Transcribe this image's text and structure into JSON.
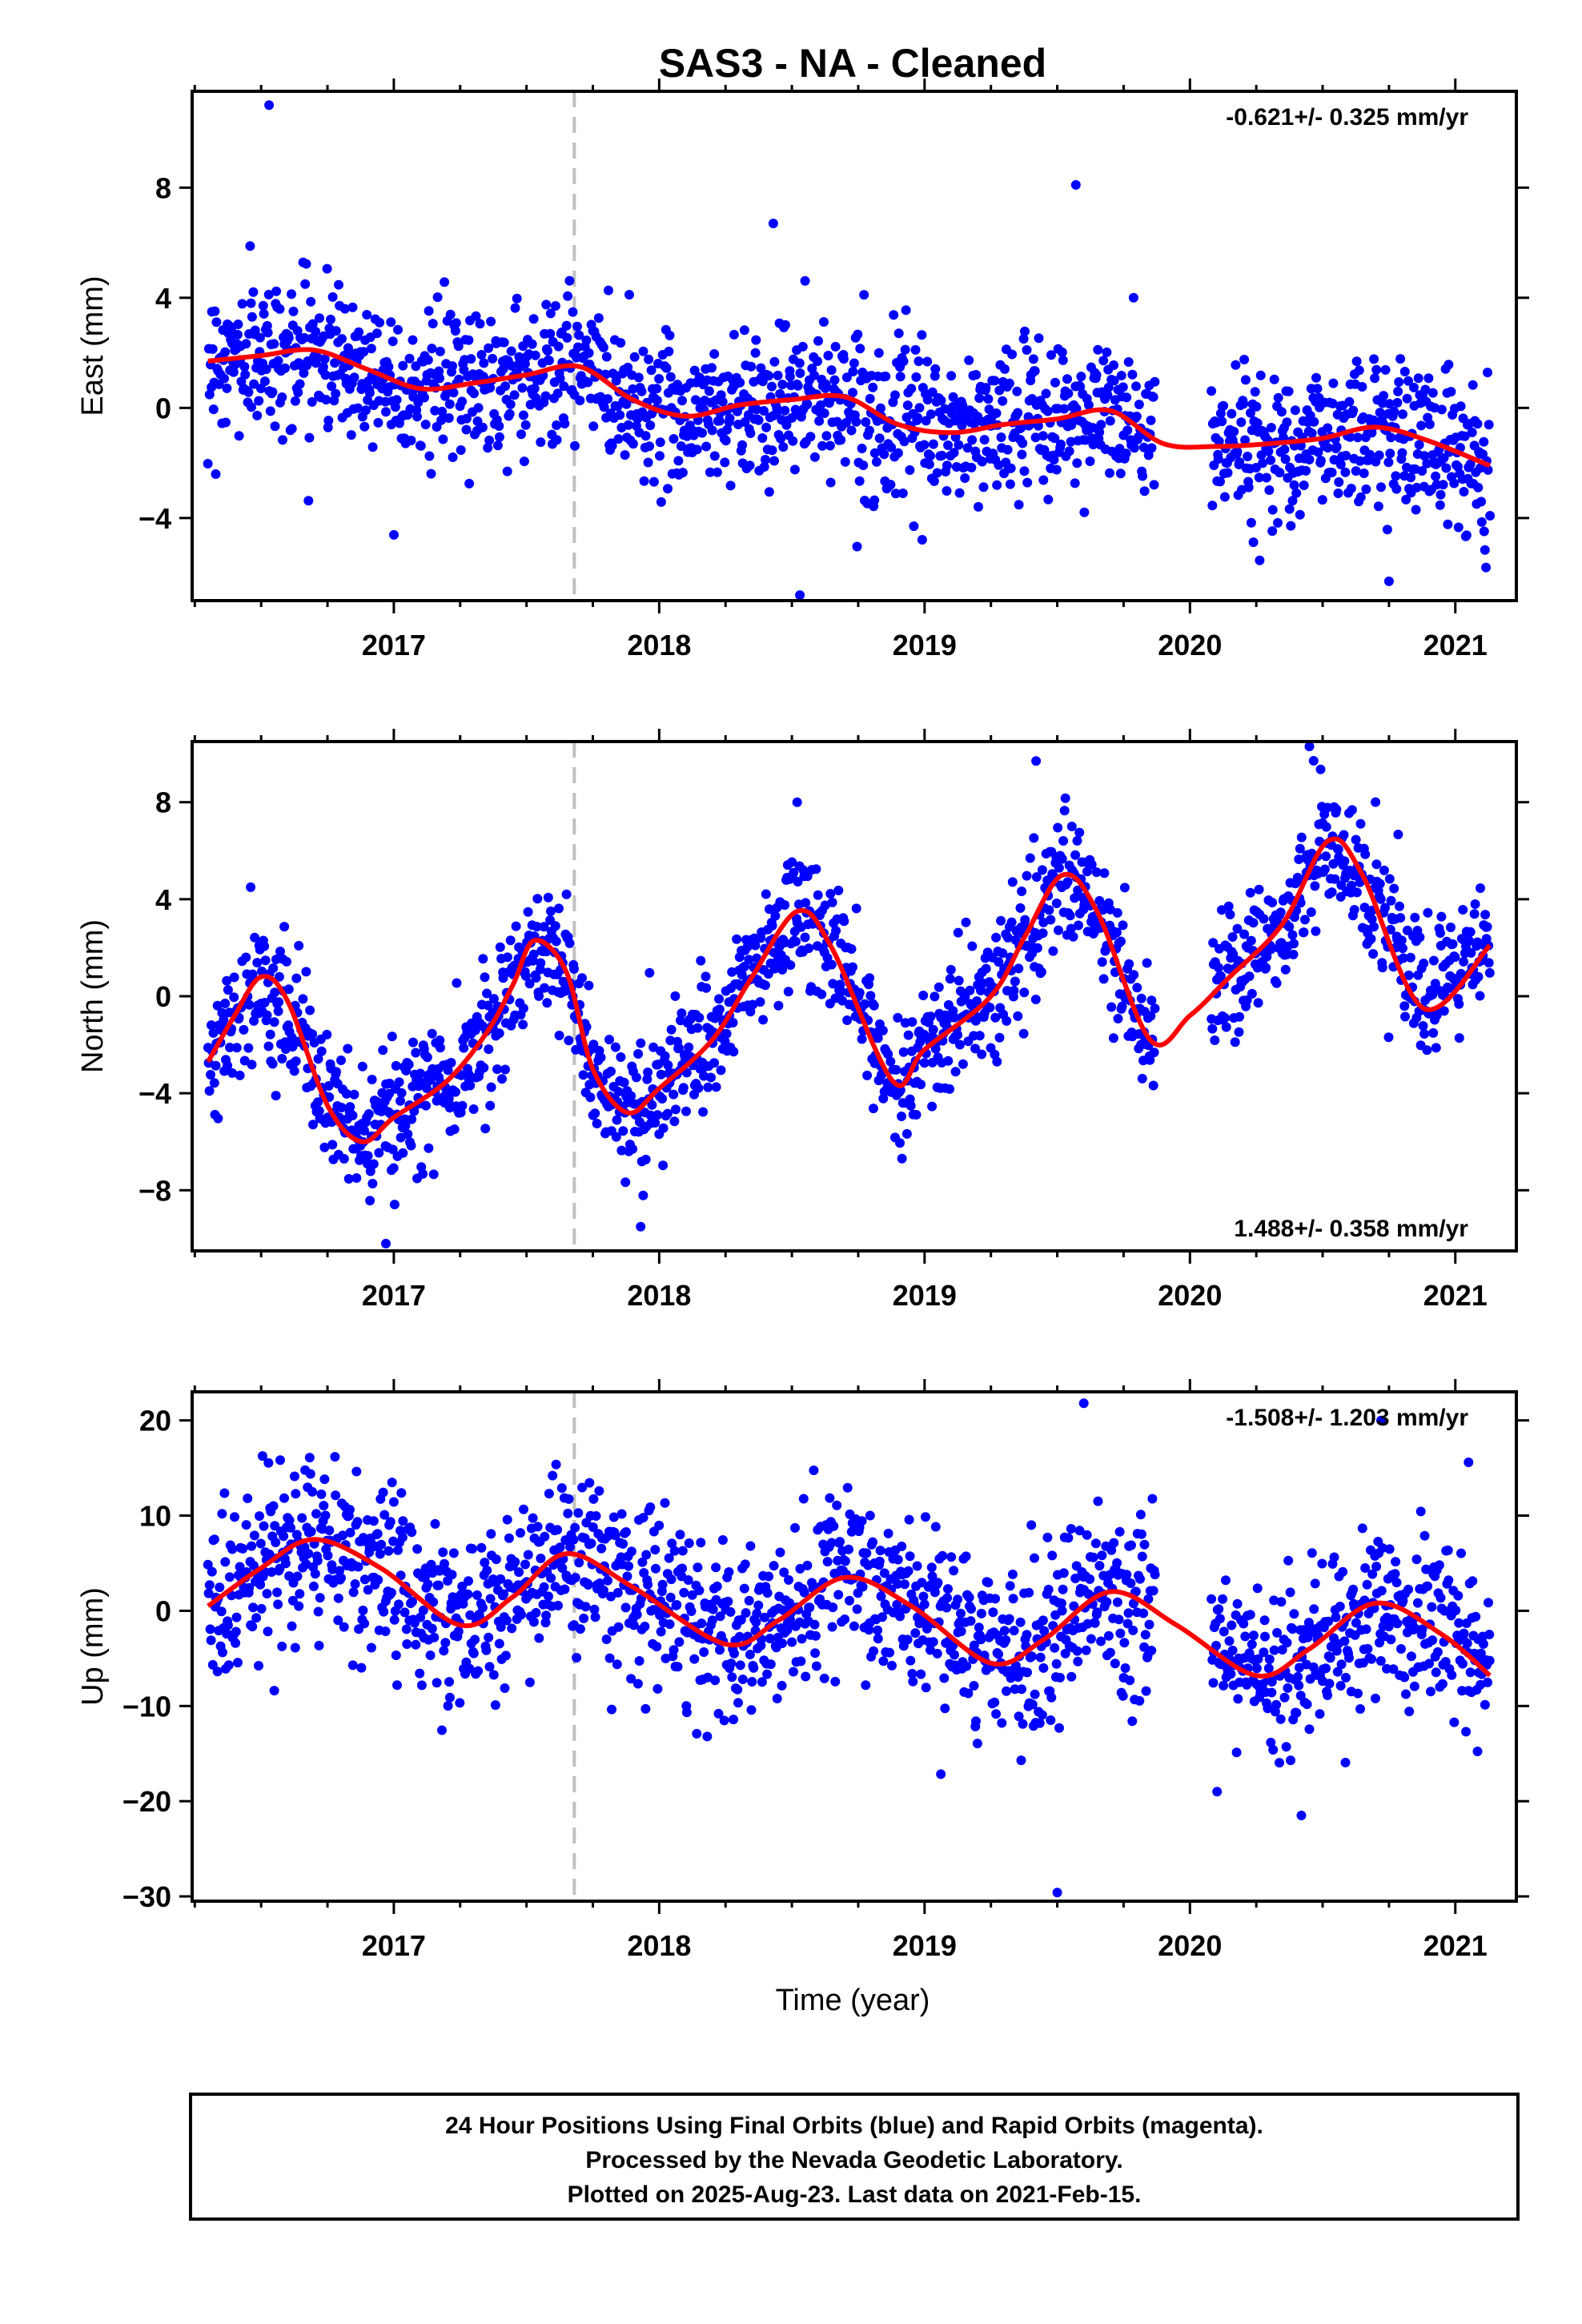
{
  "title": "SAS3  - NA - Cleaned",
  "xlabel": "Time (year)",
  "footer": {
    "line1": "24 Hour Positions Using Final Orbits (blue) and Rapid Orbits (magenta).",
    "line2": "Processed by the Nevada Geodetic Laboratory.",
    "line3": "Plotted on 2025-Aug-23. Last data on 2021-Feb-15."
  },
  "colors": {
    "points": "#0000ff",
    "fit": "#ff0000",
    "event_line": "#c0c0c0",
    "frame": "#000000"
  },
  "chart_data": [
    {
      "type": "scatter",
      "ylabel": "East (mm)",
      "rate": "-0.621+/- 0.325 mm/yr",
      "rate_position": "top-right",
      "xlim": [
        2016.24,
        2021.23
      ],
      "ylim": [
        -7.0,
        11.5
      ],
      "x_ticks": [
        2017,
        2018,
        2019,
        2020,
        2021
      ],
      "x_tick_labels": [
        "2017",
        "2018",
        "2019",
        "2020",
        "2021"
      ],
      "y_ticks": [
        -4,
        0,
        4,
        8
      ],
      "y_tick_labels": [
        "−4",
        "0",
        "4",
        "8"
      ],
      "event_line_x": 2017.68,
      "data_gap": [
        2019.87,
        2020.08
      ],
      "fit_curve": {
        "x": [
          2016.3,
          2016.5,
          2016.7,
          2016.9,
          2017.1,
          2017.3,
          2017.5,
          2017.7,
          2017.9,
          2018.1,
          2018.3,
          2018.5,
          2018.7,
          2018.9,
          2019.1,
          2019.3,
          2019.5,
          2019.7,
          2019.9,
          2020.1,
          2020.3,
          2020.5,
          2020.7,
          2020.9,
          2021.13
        ],
        "y": [
          1.7,
          1.9,
          2.1,
          1.4,
          0.7,
          0.9,
          1.2,
          1.5,
          0.3,
          -0.3,
          0.1,
          0.3,
          0.4,
          -0.6,
          -0.9,
          -0.6,
          -0.4,
          -0.1,
          -1.3,
          -1.4,
          -1.3,
          -1.1,
          -0.7,
          -1.2,
          -2.1
        ]
      },
      "points": {
        "count": 1650,
        "note": "daily positions",
        "outliers": [
          [
            2016.53,
            11.0
          ],
          [
            2018.43,
            6.7
          ],
          [
            2019.57,
            8.1
          ],
          [
            2018.53,
            -6.8
          ],
          [
            2020.75,
            -6.3
          ]
        ]
      }
    },
    {
      "type": "scatter",
      "ylabel": "North (mm)",
      "rate": "1.488+/- 0.358 mm/yr",
      "rate_position": "bottom-right",
      "xlim": [
        2016.24,
        2021.23
      ],
      "ylim": [
        -10.5,
        10.5
      ],
      "x_ticks": [
        2017,
        2018,
        2019,
        2020,
        2021
      ],
      "x_tick_labels": [
        "2017",
        "2018",
        "2019",
        "2020",
        "2021"
      ],
      "y_ticks": [
        -8,
        -4,
        0,
        4,
        8
      ],
      "y_tick_labels": [
        "−8",
        "−4",
        "0",
        "4",
        "8"
      ],
      "event_line_x": 2017.68,
      "data_gap": [
        2019.87,
        2020.08
      ],
      "fit_curve": {
        "x": [
          2016.3,
          2016.4,
          2016.5,
          2016.6,
          2016.75,
          2016.88,
          2017.0,
          2017.2,
          2017.35,
          2017.45,
          2017.53,
          2017.65,
          2017.75,
          2017.88,
          2018.0,
          2018.2,
          2018.35,
          2018.52,
          2018.65,
          2018.88,
          2019.0,
          2019.25,
          2019.38,
          2019.52,
          2019.65,
          2019.85,
          2020.0,
          2020.15,
          2020.35,
          2020.52,
          2020.65,
          2020.88,
          2021.13
        ],
        "y": [
          -2.7,
          -0.8,
          0.8,
          -0.2,
          -4.5,
          -6.0,
          -5.0,
          -3.5,
          -1.5,
          0.5,
          2.3,
          1.0,
          -3.0,
          -4.8,
          -3.8,
          -1.8,
          0.8,
          3.5,
          2.0,
          -3.5,
          -2.2,
          0.0,
          2.5,
          5.0,
          3.5,
          -1.8,
          -0.8,
          0.8,
          3.0,
          6.4,
          5.0,
          -0.5,
          2.1
        ]
      },
      "points": {
        "count": 1650,
        "note": "daily positions",
        "outliers": [
          [
            2019.42,
            9.7
          ],
          [
            2020.45,
            10.3
          ],
          [
            2018.52,
            8.0
          ],
          [
            2016.97,
            -10.2
          ],
          [
            2017.93,
            -9.5
          ]
        ]
      }
    },
    {
      "type": "scatter",
      "ylabel": "Up (mm)",
      "rate": "-1.508+/- 1.203 mm/yr",
      "rate_position": "top-right",
      "xlim": [
        2016.24,
        2021.23
      ],
      "ylim": [
        -30.5,
        23.0
      ],
      "x_ticks": [
        2017,
        2018,
        2019,
        2020,
        2021
      ],
      "x_tick_labels": [
        "2017",
        "2018",
        "2019",
        "2020",
        "2021"
      ],
      "y_ticks": [
        -30,
        -20,
        -10,
        0,
        10,
        20
      ],
      "y_tick_labels": [
        "−30",
        "−20",
        "−10",
        "0",
        "10",
        "20"
      ],
      "event_line_x": 2017.68,
      "data_gap": [
        2019.87,
        2020.08
      ],
      "fit_curve": {
        "x": [
          2016.3,
          2016.5,
          2016.7,
          2016.95,
          2017.25,
          2017.45,
          2017.65,
          2017.9,
          2018.25,
          2018.45,
          2018.7,
          2018.95,
          2019.25,
          2019.45,
          2019.7,
          2019.95,
          2020.25,
          2020.45,
          2020.7,
          2020.95,
          2021.13
        ],
        "y": [
          0.5,
          4.5,
          7.5,
          4.5,
          -1.5,
          1.5,
          6.0,
          2.5,
          -3.5,
          -1.0,
          3.5,
          0.5,
          -5.5,
          -3.0,
          2.0,
          -1.5,
          -6.8,
          -4.0,
          0.8,
          -2.5,
          -6.8
        ]
      },
      "points": {
        "count": 1650,
        "note": "daily positions",
        "outliers": [
          [
            2019.6,
            21.8
          ],
          [
            2020.72,
            20.0
          ],
          [
            2019.5,
            -29.6
          ],
          [
            2020.42,
            -21.5
          ],
          [
            2021.05,
            15.6
          ]
        ]
      }
    }
  ]
}
